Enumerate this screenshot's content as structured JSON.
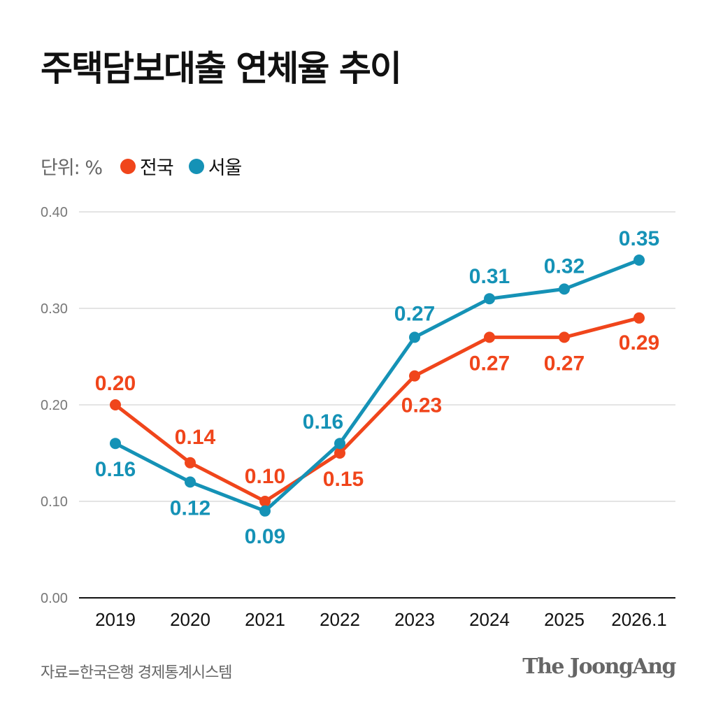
{
  "chart_data": {
    "type": "line",
    "title": "주택담보대출 연체율 추이",
    "unit_label": "단위: %",
    "categories": [
      "2019",
      "2020",
      "2021",
      "2022",
      "2023",
      "2024",
      "2025",
      "2026.1"
    ],
    "series": [
      {
        "name": "전국",
        "color": "#f0451b",
        "values": [
          0.2,
          0.14,
          0.1,
          0.15,
          0.23,
          0.27,
          0.27,
          0.29
        ],
        "labels": [
          "0.20",
          "0.14",
          "0.10",
          "0.15",
          "0.23",
          "0.27",
          "0.27",
          "0.29"
        ]
      },
      {
        "name": "서울",
        "color": "#1592b6",
        "values": [
          0.16,
          0.12,
          0.09,
          0.16,
          0.27,
          0.31,
          0.32,
          0.35
        ],
        "labels": [
          "0.16",
          "0.12",
          "0.09",
          "0.16",
          "0.27",
          "0.31",
          "0.32",
          "0.35"
        ]
      }
    ],
    "ylim": [
      0,
      0.4
    ],
    "yticks": [
      "0.00",
      "0.10",
      "0.20",
      "0.30",
      "0.40"
    ],
    "grid": true,
    "legend": "top-left",
    "source": "자료=한국은행 경제통계시스템",
    "logo": "The JoongAng"
  }
}
